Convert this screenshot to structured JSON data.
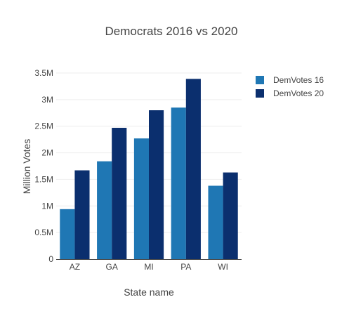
{
  "chart_data": {
    "type": "bar",
    "title": "Democrats 2016 vs 2020",
    "xlabel": "State name",
    "ylabel": "Million Votes",
    "categories": [
      "AZ",
      "GA",
      "MI",
      "PA",
      "WI"
    ],
    "series": [
      {
        "name": "DemVotes 16",
        "color": "#1f77b4",
        "values": [
          0.94,
          1.84,
          2.27,
          2.85,
          1.38
        ]
      },
      {
        "name": "DemVotes 20",
        "color": "#0b2f6e",
        "values": [
          1.67,
          2.47,
          2.8,
          3.39,
          1.63
        ]
      }
    ],
    "ylim": [
      0,
      3.5
    ],
    "yticks": [
      0,
      0.5,
      1,
      1.5,
      2,
      2.5,
      3,
      3.5
    ],
    "ytick_labels": [
      "0",
      "0.5M",
      "1M",
      "1.5M",
      "2M",
      "2.5M",
      "3M",
      "3.5M"
    ],
    "grid": true,
    "legend_position": "top-right"
  }
}
